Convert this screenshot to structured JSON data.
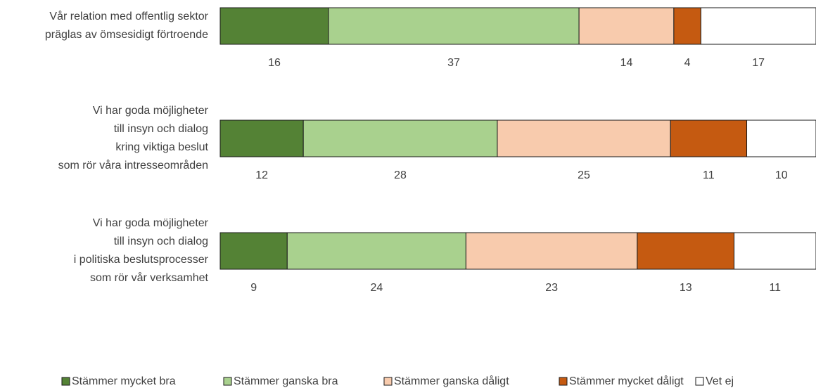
{
  "chart_data": {
    "type": "stacked-bar-horizontal",
    "categories": [
      [
        "Vår relation med offentlig sektor",
        "präglas av ömsesidigt förtroende"
      ],
      [
        "Vi har goda möjligheter",
        "till insyn och dialog",
        "kring viktiga beslut",
        "som rör våra intresseområden"
      ],
      [
        "Vi har goda möjligheter",
        "till insyn och dialog",
        "i politiska beslutsprocesser",
        "som rör vår verksamhet"
      ]
    ],
    "series": [
      {
        "name": "Stämmer mycket bra",
        "color": "#548235",
        "values": [
          16,
          12,
          9
        ]
      },
      {
        "name": "Stämmer ganska bra",
        "color": "#a9d18e",
        "values": [
          37,
          28,
          24
        ]
      },
      {
        "name": "Stämmer ganska dåligt",
        "color": "#f8cbad",
        "values": [
          14,
          25,
          23
        ]
      },
      {
        "name": "Stämmer mycket dåligt",
        "color": "#c55a11",
        "values": [
          4,
          11,
          13
        ]
      },
      {
        "name": "Vet ej",
        "color": "#ffffff",
        "values": [
          17,
          10,
          11
        ]
      }
    ],
    "legend": "bottom"
  }
}
